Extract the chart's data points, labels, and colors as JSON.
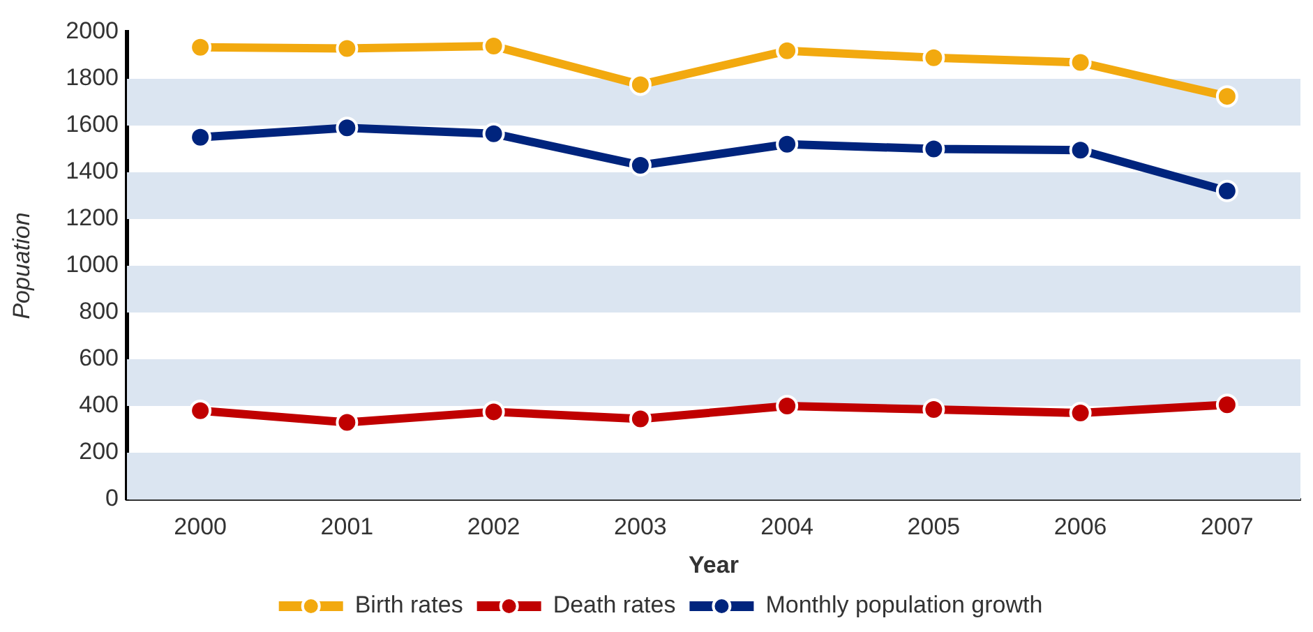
{
  "chart_data": {
    "type": "line",
    "xlabel": "Year",
    "ylabel": "Popuation",
    "categories": [
      "2000",
      "2001",
      "2002",
      "2003",
      "2004",
      "2005",
      "2006",
      "2007"
    ],
    "series": [
      {
        "name": "Birth rates",
        "color": "#f2a90f",
        "values": [
          1935,
          1930,
          1940,
          1775,
          1920,
          1890,
          1870,
          1725
        ]
      },
      {
        "name": "Death rates",
        "color": "#c00000",
        "values": [
          380,
          330,
          375,
          345,
          400,
          385,
          370,
          405
        ]
      },
      {
        "name": "Monthly population growth",
        "color": "#00247d",
        "values": [
          1550,
          1590,
          1565,
          1430,
          1520,
          1500,
          1495,
          1320
        ]
      }
    ],
    "ylim": [
      0,
      2000
    ],
    "yticks": [
      0,
      200,
      400,
      600,
      800,
      1000,
      1200,
      1400,
      1600,
      1800,
      2000
    ],
    "bands": [
      {
        "axis": "y",
        "from": 0,
        "to": 200,
        "color": "#dbe5f1"
      },
      {
        "axis": "y",
        "from": 400,
        "to": 600,
        "color": "#dbe5f1"
      },
      {
        "axis": "y",
        "from": 800,
        "to": 1000,
        "color": "#dbe5f1"
      },
      {
        "axis": "y",
        "from": 1200,
        "to": 1400,
        "color": "#dbe5f1"
      },
      {
        "axis": "y",
        "from": 1600,
        "to": 1800,
        "color": "#dbe5f1"
      }
    ],
    "legend": "bottom",
    "marker": "circle",
    "line_style": "solid"
  }
}
